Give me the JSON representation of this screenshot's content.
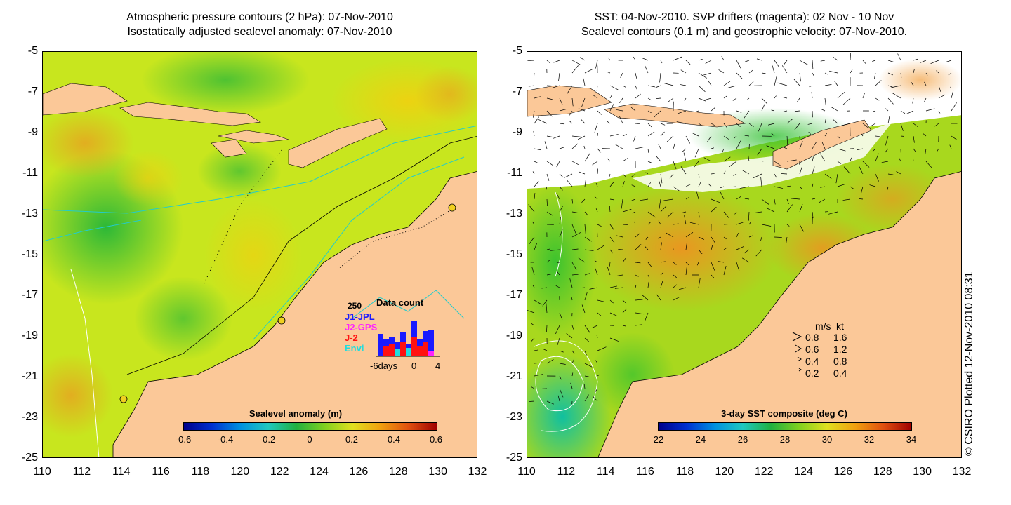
{
  "left_panel": {
    "title_line1": "Atmospheric pressure contours (2 hPa): 07-Nov-2010",
    "title_line2": "Isostatically adjusted sealevel anomaly: 07-Nov-2010",
    "colorbar": {
      "title": "Sealevel anomaly (m)",
      "ticks": [
        "-0.6",
        "-0.4",
        "-0.2",
        "0",
        "0.2",
        "0.4",
        "0.6"
      ]
    },
    "data_count": {
      "title": "Data count",
      "max_label": "250",
      "series": [
        {
          "name": "J1-JPL",
          "color": "#1a1aff"
        },
        {
          "name": "J2-GPS",
          "color": "#ff22ff"
        },
        {
          "name": "J-2",
          "color": "#ff1111"
        },
        {
          "name": "Envi",
          "color": "#22dddd"
        }
      ],
      "x_left": "-6days",
      "x_mid": "0",
      "x_right": "4"
    }
  },
  "right_panel": {
    "title_line1": "SST: 04-Nov-2010. SVP drifters (magenta): 02 Nov - 10 Nov",
    "title_line2": "Sealevel contours (0.1 m) and geostrophic velocity: 07-Nov-2010.",
    "colorbar": {
      "title": "3-day SST composite (deg C)",
      "ticks": [
        "22",
        "24",
        "26",
        "28",
        "30",
        "32",
        "34"
      ]
    },
    "velocity_legend": {
      "header_ms": "m/s",
      "header_kt": "kt",
      "rows": [
        {
          "ms": "0.8",
          "kt": "1.6"
        },
        {
          "ms": "0.6",
          "kt": "1.2"
        },
        {
          "ms": "0.4",
          "kt": "0.8"
        },
        {
          "ms": "0.2",
          "kt": "0.4"
        }
      ]
    }
  },
  "axes": {
    "y_ticks": [
      "-5",
      "-7",
      "-9",
      "-11",
      "-13",
      "-15",
      "-17",
      "-19",
      "-21",
      "-23",
      "-25"
    ],
    "x_ticks": [
      "110",
      "112",
      "114",
      "116",
      "118",
      "120",
      "122",
      "124",
      "126",
      "128",
      "130",
      "132"
    ]
  },
  "copyright": "© CSIRO Plotted 12-Nov-2010 08:31",
  "colors": {
    "land": "#fbc898",
    "ocean_base": "#c8e61e",
    "contour": "#22cccc"
  }
}
